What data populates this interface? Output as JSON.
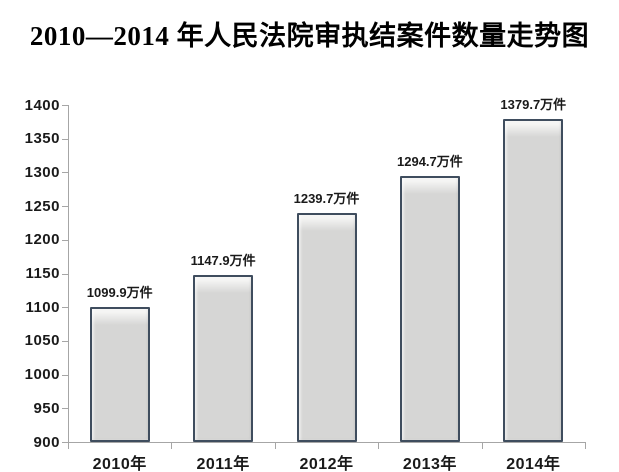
{
  "page": {
    "background": "#ffffff"
  },
  "chart_data": {
    "type": "bar",
    "title": "2010—2014 年人民法院审执结案件数量走势图",
    "categories": [
      "2010年",
      "2011年",
      "2012年",
      "2013年",
      "2014年"
    ],
    "values": [
      1099.9,
      1147.9,
      1239.7,
      1294.7,
      1379.7
    ],
    "value_labels": [
      "1099.9万件",
      "1147.9万件",
      "1239.7万件",
      "1294.7万件",
      "1379.7万件"
    ],
    "unit": "万件",
    "xlabel": "",
    "ylabel": "",
    "ylim": [
      900,
      1400
    ],
    "ytick_step": 50,
    "yticks": [
      900,
      950,
      1000,
      1050,
      1100,
      1150,
      1200,
      1250,
      1300,
      1350,
      1400
    ],
    "grid": false,
    "legend_position": "none",
    "colors": {
      "bar_fill": "#d6d6d5",
      "bar_fill_highlight": "#f5f5f4",
      "bar_border": "#3f4d5e",
      "axis": "#a6a6a6",
      "text": "#1a1a1a",
      "title_text": "#000000"
    }
  }
}
